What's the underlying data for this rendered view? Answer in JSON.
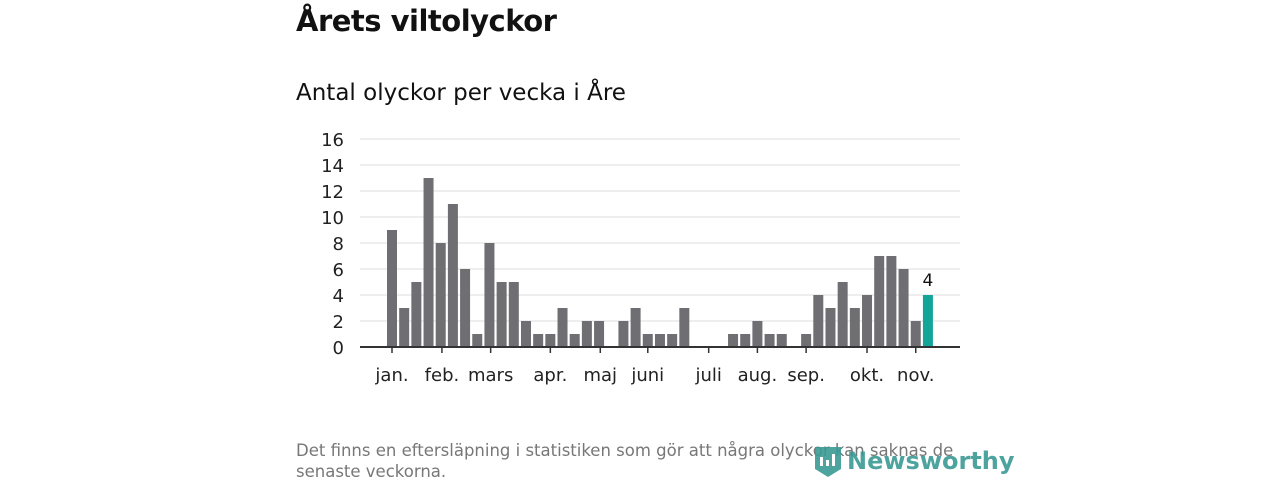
{
  "title": "Årets viltolyckor",
  "chart_data": {
    "type": "bar",
    "title": "Antal olyckor per vecka i Åre",
    "xlabel": "",
    "ylabel": "",
    "ylim": [
      0,
      16
    ],
    "yticks": [
      "0",
      "2",
      "4",
      "6",
      "8",
      "10",
      "12",
      "14",
      "16"
    ],
    "grid": true,
    "weeks": [
      1,
      2,
      3,
      4,
      5,
      6,
      7,
      8,
      9,
      10,
      11,
      12,
      13,
      14,
      15,
      16,
      17,
      18,
      19,
      20,
      21,
      22,
      23,
      24,
      25,
      26,
      27,
      28,
      29,
      30,
      31,
      32,
      33,
      34,
      35,
      36,
      37,
      38,
      39,
      40,
      41,
      42,
      43,
      44,
      45
    ],
    "values": [
      9,
      3,
      5,
      13,
      8,
      11,
      6,
      1,
      8,
      5,
      5,
      2,
      1,
      1,
      3,
      1,
      2,
      2,
      0,
      2,
      3,
      1,
      1,
      1,
      3,
      0,
      0,
      0,
      1,
      1,
      2,
      1,
      1,
      0,
      1,
      4,
      3,
      5,
      3,
      4,
      7,
      7,
      6,
      2,
      4
    ],
    "month_labels": [
      {
        "label": "jan.",
        "week": 1
      },
      {
        "label": "feb.",
        "week": 5.1
      },
      {
        "label": "mars",
        "week": 9.1
      },
      {
        "label": "apr.",
        "week": 14
      },
      {
        "label": "maj",
        "week": 18.1
      },
      {
        "label": "juni",
        "week": 22
      },
      {
        "label": "juli",
        "week": 27
      },
      {
        "label": "aug.",
        "week": 31
      },
      {
        "label": "sep.",
        "week": 35
      },
      {
        "label": "okt.",
        "week": 40
      },
      {
        "label": "nov.",
        "week": 44
      }
    ],
    "highlight": {
      "week": 45,
      "value": 4,
      "label": "4"
    },
    "colors": {
      "bar": "#6f6e73",
      "highlight": "#13a49a",
      "grid": "#dddddd",
      "axis": "#333333"
    }
  },
  "note": "Det finns en eftersläpning i statistiken som gör att några olyckor kan saknas de senaste veckorna.",
  "logo": "Newsworthy"
}
